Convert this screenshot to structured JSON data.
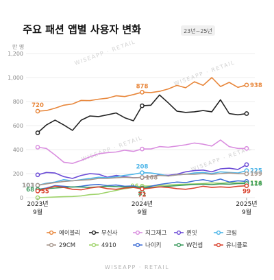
{
  "header": {
    "title": "주요 패션 앱별 사용자 변화",
    "badge": "23년~25년"
  },
  "watermark": "WISEAPP · RETAIL",
  "chart_data": {
    "type": "line",
    "unit_label": "만 명",
    "ylim": [
      0,
      1200
    ],
    "yticks": [
      0,
      200,
      400,
      600,
      800,
      1000,
      1200
    ],
    "grid": true,
    "legend_position": "bottom",
    "x_tick_labels": [
      "2023년\n9월",
      "2024년\n9월",
      "2025년\n9월"
    ],
    "series": [
      {
        "name": "에이블리",
        "color": "#e8863a",
        "values": [
          720,
          725,
          745,
          770,
          780,
          810,
          808,
          820,
          828,
          848,
          842,
          858,
          878,
          875,
          885,
          905,
          935,
          915,
          965,
          935,
          1000,
          925,
          960,
          918,
          938
        ],
        "labels": [
          {
            "index": 0,
            "text": "720",
            "pos": "above"
          },
          {
            "index": 12,
            "text": "878",
            "pos": "above"
          },
          {
            "index": 24,
            "text": "938",
            "pos": "right"
          }
        ]
      },
      {
        "name": "무신사",
        "color": "#222222",
        "values": [
          540,
          605,
          645,
          605,
          560,
          645,
          680,
          675,
          690,
          705,
          665,
          640,
          765,
          770,
          855,
          790,
          720,
          710,
          715,
          725,
          715,
          815,
          700,
          690,
          700
        ],
        "labels": []
      },
      {
        "name": "지그재그",
        "color": "#d98ddf",
        "values": [
          420,
          410,
          355,
          295,
          285,
          310,
          340,
          365,
          375,
          380,
          395,
          385,
          405,
          405,
          425,
          420,
          430,
          440,
          455,
          445,
          430,
          480,
          425,
          410,
          410
        ],
        "labels": []
      },
      {
        "name": "퀸잇",
        "color": "#6a4ad6",
        "values": [
          190,
          210,
          205,
          175,
          160,
          185,
          200,
          195,
          170,
          185,
          175,
          165,
          168,
          175,
          190,
          185,
          195,
          215,
          225,
          230,
          215,
          240,
          245,
          235,
          275
        ],
        "labels": []
      },
      {
        "name": "크림",
        "color": "#4db5e8",
        "values": [
          103,
          120,
          130,
          150,
          140,
          150,
          160,
          170,
          165,
          175,
          185,
          195,
          208,
          205,
          195,
          180,
          190,
          195,
          205,
          210,
          200,
          215,
          210,
          205,
          225
        ],
        "labels": [
          {
            "index": 0,
            "text": "103",
            "pos": "left"
          },
          {
            "index": 12,
            "text": "208",
            "pos": "above"
          },
          {
            "index": 24,
            "text": "225",
            "pos": "right"
          }
        ]
      },
      {
        "name": "29CM",
        "color": "#a6968c",
        "values": [
          103,
          115,
          125,
          135,
          140,
          145,
          150,
          160,
          160,
          165,
          170,
          165,
          168,
          175,
          185,
          180,
          190,
          195,
          195,
          200,
          195,
          200,
          205,
          200,
          199
        ],
        "labels": [
          {
            "index": 0,
            "text": "103",
            "pos": "left"
          },
          {
            "index": 12,
            "text": "168",
            "pos": "right"
          },
          {
            "index": 24,
            "text": "199",
            "pos": "right"
          }
        ]
      },
      {
        "name": "4910",
        "color": "#9fd36a",
        "values": [
          0,
          2,
          5,
          8,
          10,
          15,
          25,
          30,
          45,
          60,
          75,
          85,
          96,
          98,
          100,
          105,
          110,
          112,
          115,
          118,
          122,
          120,
          125,
          122,
          124
        ],
        "labels": [
          {
            "index": 12,
            "text": "96",
            "pos": "left"
          },
          {
            "index": 24,
            "text": "124",
            "pos": "right"
          }
        ]
      },
      {
        "name": "나이키",
        "color": "#3f6fd6",
        "values": [
          68,
          80,
          100,
          95,
          88,
          95,
          105,
          110,
          100,
          105,
          95,
          98,
          80,
          95,
          110,
          120,
          130,
          125,
          140,
          150,
          135,
          155,
          130,
          140,
          135
        ],
        "labels": []
      },
      {
        "name": "W컨셉",
        "color": "#3c9a5f",
        "values": [
          68,
          75,
          80,
          85,
          90,
          88,
          85,
          90,
          95,
          92,
          88,
          90,
          81,
          85,
          90,
          95,
          100,
          105,
          110,
          112,
          108,
          115,
          112,
          118,
          118
        ],
        "labels": [
          {
            "index": 0,
            "text": "68",
            "pos": "left"
          },
          {
            "index": 12,
            "text": "81",
            "pos": "below"
          },
          {
            "index": 24,
            "text": "118",
            "pos": "right"
          }
        ]
      },
      {
        "name": "유니클로",
        "color": "#d9432f",
        "values": [
          55,
          75,
          95,
          85,
          70,
          65,
          80,
          90,
          75,
          70,
          80,
          85,
          72,
          80,
          90,
          85,
          75,
          70,
          80,
          95,
          85,
          90,
          85,
          95,
          99
        ],
        "labels": [
          {
            "index": 0,
            "text": "55",
            "pos": "right"
          },
          {
            "index": 12,
            "text": "72",
            "pos": "below"
          },
          {
            "index": 24,
            "text": "99",
            "pos": "below"
          }
        ]
      }
    ]
  }
}
